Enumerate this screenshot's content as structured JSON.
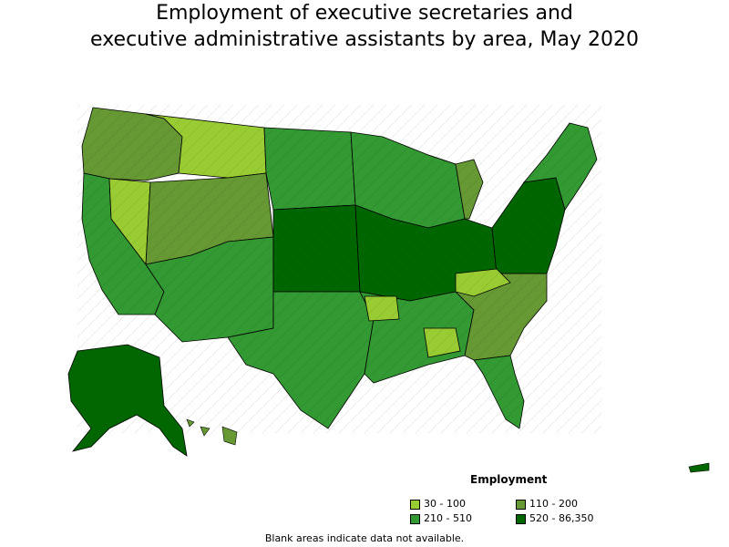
{
  "title_line1": "Employment of executive secretaries and",
  "title_line2": "executive administrative assistants by area, May 2020",
  "legend": {
    "title": "Employment",
    "items": [
      {
        "label": "30 - 100",
        "color": "#99cc33"
      },
      {
        "label": "110 - 200",
        "color": "#669933"
      },
      {
        "label": "210 - 510",
        "color": "#339933"
      },
      {
        "label": "520 - 86,350",
        "color": "#006600"
      }
    ]
  },
  "footnote": "Blank areas indicate data not available.",
  "colors": {
    "outline": "#000000",
    "background": "#ffffff"
  }
}
